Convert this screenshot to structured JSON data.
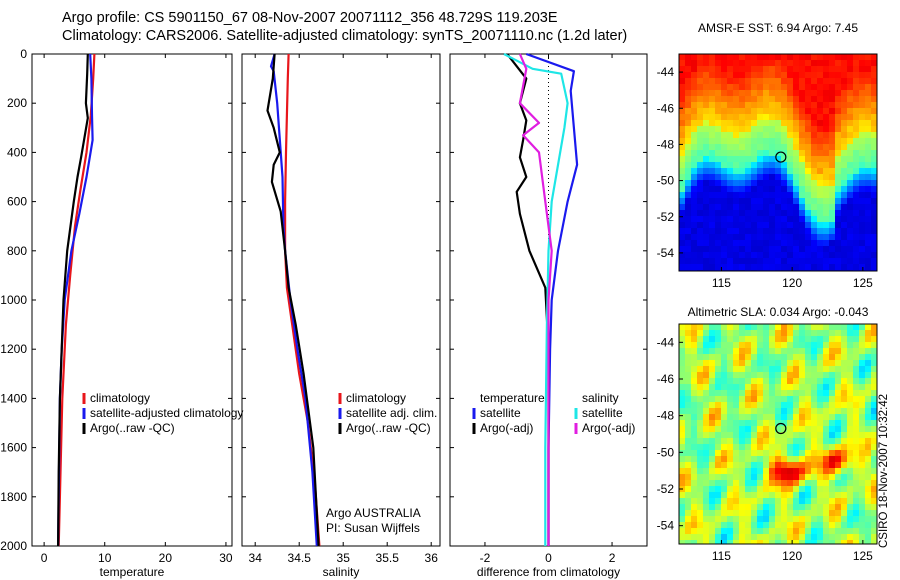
{
  "header": {
    "line1": "Argo profile: CS 5901150_67 08-Nov-2007 20071112_356 48.729S 119.203E",
    "line2": "Climatology: CARS2006. Satellite-adjusted climatology: synTS_20071110.nc (1.2d later)"
  },
  "side_label": "CSIRO 18-Nov-2007 10:32:42",
  "colors": {
    "climatology": "#e8161b",
    "satellite": "#1a1aee",
    "argo": "#000000",
    "cyan": "#1ee6e6",
    "magenta": "#e01ee0"
  },
  "chart_data": [
    {
      "type": "line",
      "name": "temperature-profile",
      "xlabel": "temperature",
      "xlim": [
        -2,
        31
      ],
      "ylim": [
        2000,
        0
      ],
      "xticks": [
        0,
        10,
        20,
        30
      ],
      "yticks": [
        0,
        200,
        400,
        600,
        800,
        1000,
        1200,
        1400,
        1600,
        1800,
        2000
      ],
      "legend": [
        "climatology",
        "satellite-adjusted climatology",
        "Argo(..raw -QC)"
      ],
      "series": [
        {
          "name": "climatology",
          "color": "#e8161b",
          "x": [
            8.3,
            8.1,
            7.7,
            7.0,
            6.0,
            5.1,
            4.3,
            3.6,
            3.0,
            2.7,
            2.4
          ],
          "y": [
            0,
            100,
            250,
            400,
            550,
            700,
            900,
            1100,
            1400,
            1700,
            2000
          ]
        },
        {
          "name": "satellite",
          "color": "#1a1aee",
          "x": [
            7.6,
            7.8,
            7.9,
            8.0,
            7.0,
            5.8,
            4.5,
            3.4,
            2.9,
            2.6,
            2.5,
            2.4,
            2.3
          ],
          "y": [
            0,
            100,
            250,
            350,
            500,
            650,
            800,
            1000,
            1200,
            1400,
            1600,
            1800,
            2000
          ]
        },
        {
          "name": "argo",
          "color": "#000000",
          "x": [
            7.2,
            7.1,
            6.9,
            7.2,
            6.8,
            6.1,
            5.5,
            4.9,
            3.8,
            3.2,
            2.9,
            2.6,
            2.4,
            2.3
          ],
          "y": [
            0,
            80,
            200,
            260,
            320,
            420,
            500,
            600,
            800,
            1000,
            1200,
            1400,
            1700,
            2000
          ]
        }
      ]
    },
    {
      "type": "line",
      "name": "salinity-profile",
      "xlabel": "salinity",
      "xlim": [
        33.85,
        36.1
      ],
      "ylim": [
        2000,
        0
      ],
      "xticks": [
        34,
        34.5,
        35,
        35.5,
        36
      ],
      "yticks": [
        0,
        200,
        400,
        600,
        800,
        1000,
        1200,
        1400,
        1600,
        1800,
        2000
      ],
      "legend": [
        "climatology",
        "satellite adj. clim.",
        "Argo(..raw -QC)"
      ],
      "annotation_line1": "Argo AUSTRALIA",
      "annotation_line2": "PI: Susan Wijffels",
      "series": [
        {
          "name": "climatology",
          "color": "#e8161b",
          "x": [
            34.38,
            34.37,
            34.36,
            34.35,
            34.34,
            34.34,
            34.36,
            34.42,
            34.5,
            34.6,
            34.68,
            34.73
          ],
          "y": [
            0,
            100,
            250,
            400,
            600,
            800,
            950,
            1100,
            1300,
            1500,
            1750,
            2000
          ]
        },
        {
          "name": "satellite",
          "color": "#1a1aee",
          "x": [
            34.22,
            34.18,
            34.21,
            34.25,
            34.31,
            34.32,
            34.34,
            34.4,
            34.48,
            34.57,
            34.65,
            34.7
          ],
          "y": [
            0,
            50,
            70,
            200,
            500,
            700,
            800,
            1000,
            1200,
            1400,
            1700,
            2000
          ]
        },
        {
          "name": "argo",
          "color": "#000000",
          "x": [
            34.22,
            34.2,
            34.14,
            34.21,
            34.28,
            34.21,
            34.19,
            34.29,
            34.34,
            34.38,
            34.46,
            34.55,
            34.66,
            34.72
          ],
          "y": [
            0,
            100,
            230,
            300,
            400,
            450,
            520,
            640,
            800,
            950,
            1100,
            1300,
            1600,
            2000
          ]
        }
      ]
    },
    {
      "type": "line",
      "name": "difference-profile",
      "xlabel": "difference from climatology",
      "xlim": [
        -3.1,
        3.1
      ],
      "ylim": [
        2000,
        0
      ],
      "xticks": [
        -2,
        0,
        2
      ],
      "yticks": [
        0,
        200,
        400,
        600,
        800,
        1000,
        1200,
        1400,
        1600,
        1800,
        2000
      ],
      "legend_temperature": [
        "temperature",
        "satellite",
        "Argo(-adj)"
      ],
      "legend_salinity": [
        "salinity",
        "satellite",
        "Argo(-adj)"
      ],
      "series": [
        {
          "name": "temperature-satellite",
          "color": "#1a1aee",
          "x": [
            -0.7,
            0.8,
            0.7,
            0.8,
            0.9,
            0.6,
            0.3,
            0.1,
            0.05,
            0.0,
            0.0
          ],
          "y": [
            0,
            70,
            150,
            300,
            450,
            600,
            800,
            1000,
            1200,
            1600,
            2000
          ]
        },
        {
          "name": "temperature-argo",
          "color": "#000000",
          "x": [
            -1.3,
            -0.7,
            -0.9,
            -0.7,
            -0.8,
            -0.9,
            -0.7,
            -1.0,
            -0.9,
            -0.6,
            -0.1,
            0.0,
            0.0
          ],
          "y": [
            0,
            100,
            200,
            270,
            350,
            420,
            500,
            560,
            650,
            800,
            950,
            1200,
            2000
          ]
        },
        {
          "name": "salinity-satellite",
          "color": "#1ee6e6",
          "x": [
            -1.4,
            -0.5,
            0.4,
            0.6,
            0.5,
            0.1,
            0.0,
            -0.05,
            -0.1,
            -0.1
          ],
          "y": [
            0,
            60,
            80,
            200,
            300,
            600,
            800,
            1100,
            1600,
            2000
          ]
        },
        {
          "name": "salinity-argo",
          "color": "#e01ee0",
          "x": [
            -0.9,
            -0.7,
            -0.9,
            -0.3,
            -0.8,
            -0.3,
            -0.1,
            0.1,
            0.0,
            0.0
          ],
          "y": [
            0,
            60,
            200,
            280,
            330,
            400,
            600,
            800,
            1000,
            2000
          ]
        }
      ]
    },
    {
      "type": "heatmap",
      "name": "sst-map",
      "title": "AMSR-E SST: 6.94 Argo: 7.45",
      "xlim": [
        112,
        126
      ],
      "ylim": [
        -55,
        -43
      ],
      "xticks": [
        115,
        120,
        125
      ],
      "yticks": [
        -44,
        -46,
        -48,
        -50,
        -52,
        -54
      ],
      "marker": {
        "lon": 119.2,
        "lat": -48.7
      }
    },
    {
      "type": "heatmap",
      "name": "sla-map",
      "title": "Altimetric SLA: 0.034 Argo: -0.043",
      "xlim": [
        112,
        126
      ],
      "ylim": [
        -55,
        -43
      ],
      "xticks": [
        115,
        120,
        125
      ],
      "yticks": [
        -44,
        -46,
        -48,
        -50,
        -52,
        -54
      ],
      "marker": {
        "lon": 119.2,
        "lat": -48.7
      }
    }
  ]
}
